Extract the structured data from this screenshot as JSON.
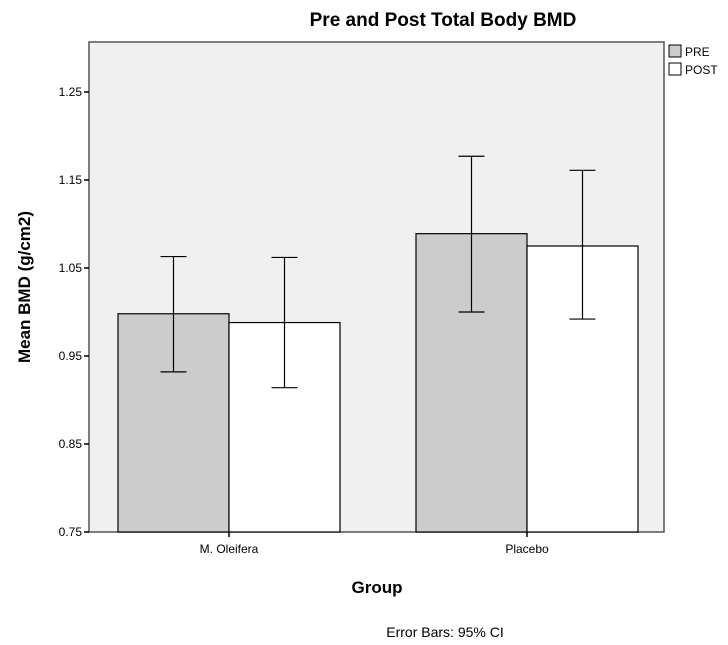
{
  "chart_data": {
    "type": "bar",
    "title": "Pre and Post Total Body BMD",
    "xlabel": "Group",
    "ylabel": "Mean BMD (g/cm2)",
    "categories": [
      "M. Oleifera",
      "Placebo"
    ],
    "series": [
      {
        "name": "PRE",
        "values": [
          0.998,
          1.089
        ],
        "ci_low": [
          0.932,
          1.0
        ],
        "ci_high": [
          1.063,
          1.177
        ]
      },
      {
        "name": "POST",
        "values": [
          0.988,
          1.075
        ],
        "ci_low": [
          0.914,
          0.992
        ],
        "ci_high": [
          1.062,
          1.161
        ]
      }
    ],
    "ylim": [
      0.75,
      1.3
    ],
    "yticks": [
      "0.75",
      "0.85",
      "0.95",
      "1.05",
      "1.15",
      "1.25"
    ],
    "grid": false,
    "legend_position": "top-right",
    "note": "Error Bars: 95% CI",
    "colors": {
      "PRE": "#cccccc",
      "POST": "#ffffff",
      "plot_background": "#f0f0f0",
      "stroke": "#000000"
    }
  }
}
